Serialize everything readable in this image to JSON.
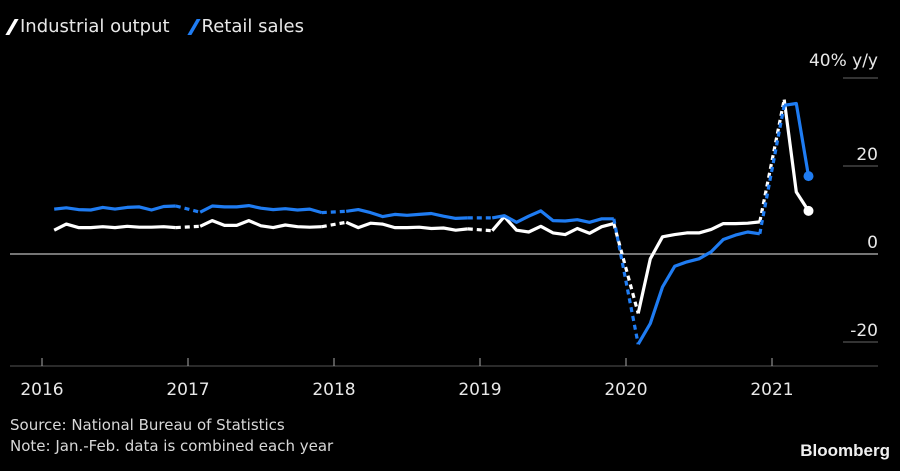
{
  "legend": [
    {
      "label": "Industrial output",
      "color": "#ffffff"
    },
    {
      "label": "Retail sales",
      "color": "#1f7cf2"
    }
  ],
  "unit_label": "40% y/y",
  "source": "Source: National Bureau of Statistics",
  "note": "Note: Jan.-Feb. data is combined each year",
  "brand": "Bloomberg",
  "chart_data": {
    "type": "line",
    "ylim": [
      -20,
      40
    ],
    "yticks": [
      20,
      0,
      -20
    ],
    "xticks": [
      "2016",
      "2017",
      "2018",
      "2019",
      "2020",
      "2021"
    ],
    "series": [
      {
        "name": "Industrial output",
        "color": "#ffffff",
        "points": [
          [
            "2016-02",
            5.4
          ],
          [
            "2016-03",
            6.8
          ],
          [
            "2016-04",
            6.0
          ],
          [
            "2016-05",
            6.0
          ],
          [
            "2016-06",
            6.2
          ],
          [
            "2016-07",
            6.0
          ],
          [
            "2016-08",
            6.3
          ],
          [
            "2016-09",
            6.1
          ],
          [
            "2016-10",
            6.1
          ],
          [
            "2016-11",
            6.2
          ],
          [
            "2016-12",
            6.0
          ],
          [
            "2017-02",
            6.3
          ],
          [
            "2017-03",
            7.6
          ],
          [
            "2017-04",
            6.5
          ],
          [
            "2017-05",
            6.5
          ],
          [
            "2017-06",
            7.6
          ],
          [
            "2017-07",
            6.4
          ],
          [
            "2017-08",
            6.0
          ],
          [
            "2017-09",
            6.6
          ],
          [
            "2017-10",
            6.2
          ],
          [
            "2017-11",
            6.1
          ],
          [
            "2017-12",
            6.2
          ],
          [
            "2018-02",
            7.2
          ],
          [
            "2018-03",
            6.0
          ],
          [
            "2018-04",
            7.0
          ],
          [
            "2018-05",
            6.8
          ],
          [
            "2018-06",
            6.0
          ],
          [
            "2018-07",
            6.0
          ],
          [
            "2018-08",
            6.1
          ],
          [
            "2018-09",
            5.8
          ],
          [
            "2018-10",
            5.9
          ],
          [
            "2018-11",
            5.4
          ],
          [
            "2018-12",
            5.7
          ],
          [
            "2019-02",
            5.3
          ],
          [
            "2019-03",
            8.5
          ],
          [
            "2019-04",
            5.4
          ],
          [
            "2019-05",
            5.0
          ],
          [
            "2019-06",
            6.3
          ],
          [
            "2019-07",
            4.8
          ],
          [
            "2019-08",
            4.4
          ],
          [
            "2019-09",
            5.8
          ],
          [
            "2019-10",
            4.7
          ],
          [
            "2019-11",
            6.2
          ],
          [
            "2019-12",
            6.9
          ],
          [
            "2020-02",
            -13.5
          ],
          [
            "2020-03",
            -1.1
          ],
          [
            "2020-04",
            3.9
          ],
          [
            "2020-05",
            4.4
          ],
          [
            "2020-06",
            4.8
          ],
          [
            "2020-07",
            4.8
          ],
          [
            "2020-08",
            5.6
          ],
          [
            "2020-09",
            6.9
          ],
          [
            "2020-10",
            6.9
          ],
          [
            "2020-11",
            7.0
          ],
          [
            "2020-12",
            7.3
          ],
          [
            "2021-02",
            35.1
          ],
          [
            "2021-03",
            14.1
          ],
          [
            "2021-04",
            9.8
          ]
        ]
      },
      {
        "name": "Retail sales",
        "color": "#1f7cf2",
        "points": [
          [
            "2016-02",
            10.2
          ],
          [
            "2016-03",
            10.5
          ],
          [
            "2016-04",
            10.1
          ],
          [
            "2016-05",
            10.0
          ],
          [
            "2016-06",
            10.6
          ],
          [
            "2016-07",
            10.2
          ],
          [
            "2016-08",
            10.6
          ],
          [
            "2016-09",
            10.7
          ],
          [
            "2016-10",
            10.0
          ],
          [
            "2016-11",
            10.8
          ],
          [
            "2016-12",
            10.9
          ],
          [
            "2017-02",
            9.5
          ],
          [
            "2017-03",
            10.9
          ],
          [
            "2017-04",
            10.7
          ],
          [
            "2017-05",
            10.7
          ],
          [
            "2017-06",
            11.0
          ],
          [
            "2017-07",
            10.4
          ],
          [
            "2017-08",
            10.1
          ],
          [
            "2017-09",
            10.3
          ],
          [
            "2017-10",
            10.0
          ],
          [
            "2017-11",
            10.2
          ],
          [
            "2017-12",
            9.4
          ],
          [
            "2018-02",
            9.7
          ],
          [
            "2018-03",
            10.1
          ],
          [
            "2018-04",
            9.4
          ],
          [
            "2018-05",
            8.5
          ],
          [
            "2018-06",
            9.0
          ],
          [
            "2018-07",
            8.8
          ],
          [
            "2018-08",
            9.0
          ],
          [
            "2018-09",
            9.2
          ],
          [
            "2018-10",
            8.6
          ],
          [
            "2018-11",
            8.1
          ],
          [
            "2018-12",
            8.2
          ],
          [
            "2019-02",
            8.2
          ],
          [
            "2019-03",
            8.7
          ],
          [
            "2019-04",
            7.2
          ],
          [
            "2019-05",
            8.6
          ],
          [
            "2019-06",
            9.8
          ],
          [
            "2019-07",
            7.6
          ],
          [
            "2019-08",
            7.5
          ],
          [
            "2019-09",
            7.8
          ],
          [
            "2019-10",
            7.2
          ],
          [
            "2019-11",
            8.0
          ],
          [
            "2019-12",
            8.0
          ],
          [
            "2020-02",
            -20.5
          ],
          [
            "2020-03",
            -15.8
          ],
          [
            "2020-04",
            -7.5
          ],
          [
            "2020-05",
            -2.8
          ],
          [
            "2020-06",
            -1.8
          ],
          [
            "2020-07",
            -1.1
          ],
          [
            "2020-08",
            0.5
          ],
          [
            "2020-09",
            3.3
          ],
          [
            "2020-10",
            4.3
          ],
          [
            "2020-11",
            5.0
          ],
          [
            "2020-12",
            4.6
          ],
          [
            "2021-02",
            33.8
          ],
          [
            "2021-03",
            34.2
          ],
          [
            "2021-04",
            17.7
          ]
        ]
      }
    ]
  }
}
